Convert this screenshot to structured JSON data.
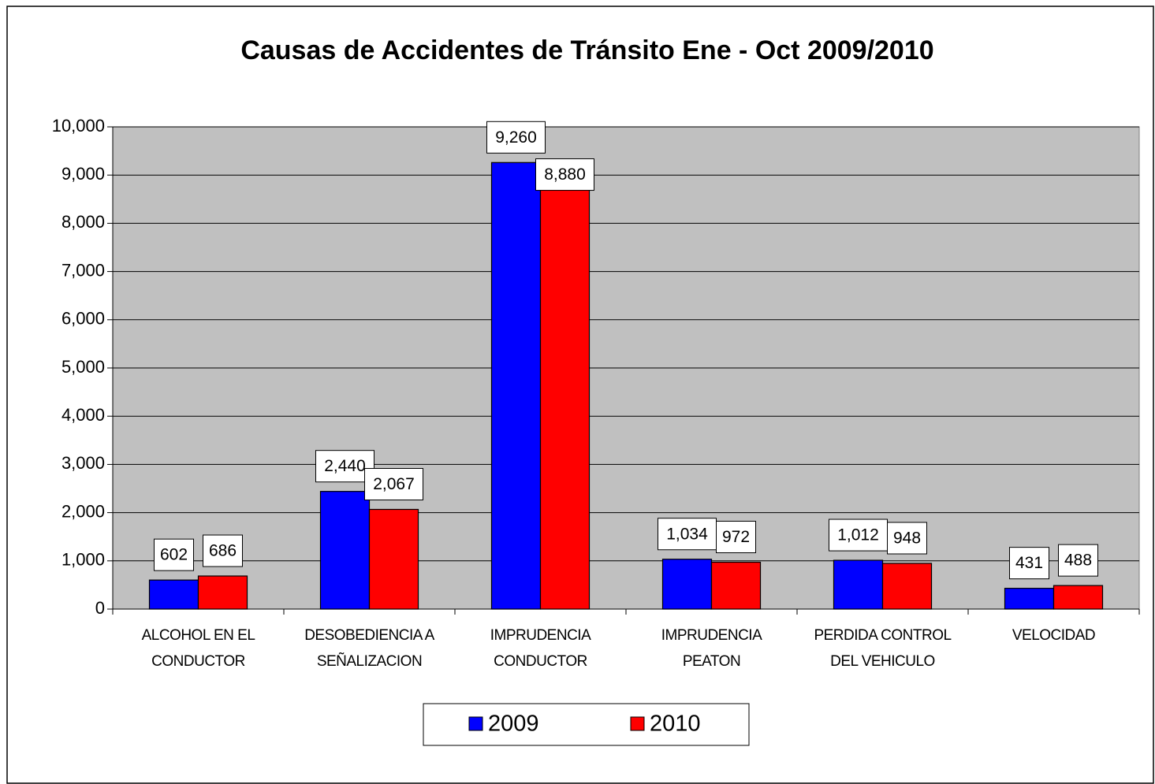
{
  "chart_data": {
    "type": "bar",
    "title": "Causas de Accidentes de Tránsito Ene - Oct 2009/2010",
    "categories": [
      "ALCOHOL EN EL CONDUCTOR",
      "DESOBEDIENCIA A SEÑALIZACION",
      "IMPRUDENCIA CONDUCTOR",
      "IMPRUDENCIA PEATON",
      "PERDIDA CONTROL DEL VEHICULO",
      "VELOCIDAD"
    ],
    "series": [
      {
        "name": "2009",
        "color": "#0000ff",
        "values": [
          602,
          2440,
          9260,
          1034,
          1012,
          431
        ],
        "value_labels": [
          "602",
          "2,440",
          "9,260",
          "1,034",
          "1,012",
          "431"
        ]
      },
      {
        "name": "2010",
        "color": "#ff0000",
        "values": [
          686,
          2067,
          8880,
          972,
          948,
          488
        ],
        "value_labels": [
          "686",
          "2,067",
          "8,880",
          "972",
          "948",
          "488"
        ]
      }
    ],
    "ylim": [
      0,
      10000
    ],
    "yticks": [
      0,
      {
        "value": 1000,
        "label": "1,000"
      },
      {
        "value": 2000,
        "label": "2,000"
      },
      {
        "value": 3000,
        "label": "3,000"
      },
      {
        "value": 4000,
        "label": "4,000"
      },
      {
        "value": 5000,
        "label": "5,000"
      },
      {
        "value": 6000,
        "label": "6,000"
      },
      {
        "value": 7000,
        "label": "7,000"
      },
      {
        "value": 8000,
        "label": "8,000"
      },
      {
        "value": 9000,
        "label": "9,000"
      },
      {
        "value": 10000,
        "label": "10,000"
      }
    ],
    "grid": true,
    "plot_background": "#c0c0c0"
  }
}
